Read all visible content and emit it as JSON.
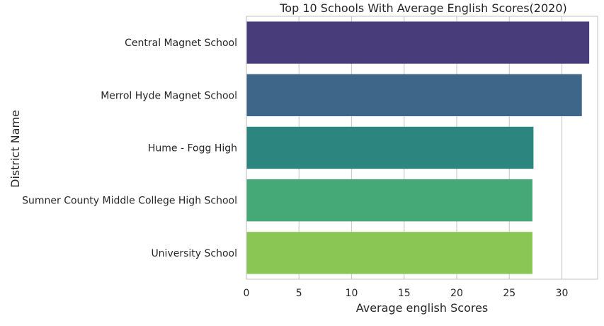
{
  "chart_data": {
    "type": "bar",
    "orientation": "horizontal",
    "title": "Top 10 Schools With Average English Scores(2020)",
    "xlabel": "Average english Scores",
    "ylabel": "District Name",
    "categories": [
      "Central Magnet School",
      "Merrol Hyde Magnet School",
      "Hume - Fogg High",
      "Sumner County Middle College High School",
      "University School"
    ],
    "values": [
      32.6,
      31.9,
      27.3,
      27.2,
      27.2
    ],
    "xlim": [
      0,
      33.4
    ],
    "xticks": [
      0,
      5,
      10,
      15,
      20,
      25,
      30
    ],
    "bar_colors": [
      "#483d7a",
      "#3e6688",
      "#2d8580",
      "#45a877",
      "#8ac653"
    ],
    "grid": "x-major",
    "legend": "none"
  }
}
